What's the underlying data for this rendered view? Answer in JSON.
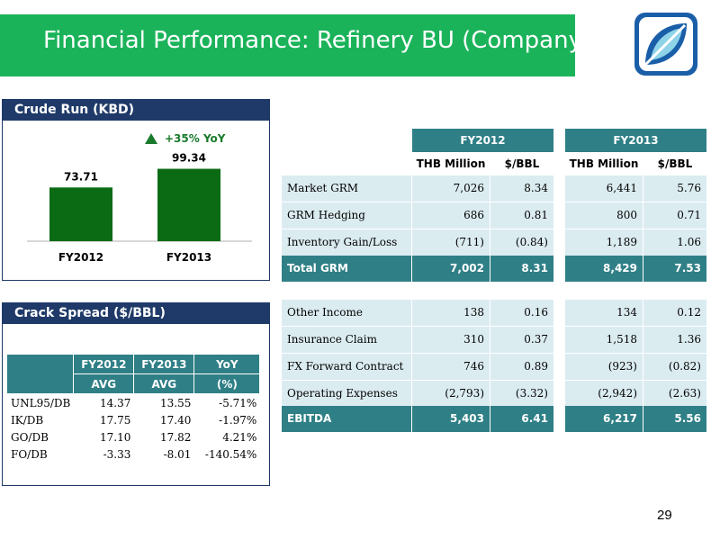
{
  "header": {
    "title": "Financial Performance: Refinery BU (Company)"
  },
  "colors": {
    "header_green": "#1bb35a",
    "panel_navy": "#1f3a68",
    "teal": "#2f7f86",
    "bar_green": "#0b6b14",
    "row_bg": "#dbecf1"
  },
  "crude_run": {
    "title": "Crude Run (KBD)",
    "yoy": "+35% YoY"
  },
  "chart_data": {
    "type": "bar",
    "title": "Crude Run (KBD)",
    "categories": [
      "FY2012",
      "FY2013"
    ],
    "values": [
      73.71,
      99.34
    ],
    "value_labels": [
      "73.71",
      "99.34"
    ],
    "annotation": "+35% YoY",
    "ylim": [
      0,
      120
    ]
  },
  "crack_spread": {
    "title": "Crack Spread ($/BBL)",
    "headers": [
      "FY2012",
      "FY2013",
      "YoY"
    ],
    "subheaders": [
      "AVG",
      "AVG",
      "(%)"
    ],
    "rows": [
      {
        "name": "UNL95/DB",
        "fy2012": "14.37",
        "fy2013": "13.55",
        "yoy": "-5.71%"
      },
      {
        "name": "IK/DB",
        "fy2012": "17.75",
        "fy2013": "17.40",
        "yoy": "-1.97%"
      },
      {
        "name": "GO/DB",
        "fy2012": "17.10",
        "fy2013": "17.82",
        "yoy": "4.21%"
      },
      {
        "name": "FO/DB",
        "fy2012": "-3.33",
        "fy2013": "-8.01",
        "yoy": "-140.54%"
      }
    ]
  },
  "performance": {
    "years": [
      "FY2012",
      "FY2013"
    ],
    "units": [
      "THB Million",
      "$/BBL",
      "THB Million",
      "$/BBL"
    ],
    "grm_rows": [
      {
        "label": "Market GRM",
        "v": [
          "7,026",
          "8.34",
          "6,441",
          "5.76"
        ]
      },
      {
        "label": "GRM Hedging",
        "v": [
          "686",
          "0.81",
          "800",
          "0.71"
        ]
      },
      {
        "label": "Inventory Gain/Loss",
        "v": [
          "(711)",
          "(0.84)",
          "1,189",
          "1.06"
        ]
      }
    ],
    "grm_total": {
      "label": "Total GRM",
      "v": [
        "7,002",
        "8.31",
        "8,429",
        "7.53"
      ]
    },
    "other_rows": [
      {
        "label": "Other Income",
        "v": [
          "138",
          "0.16",
          "134",
          "0.12"
        ]
      },
      {
        "label": "Insurance Claim",
        "v": [
          "310",
          "0.37",
          "1,518",
          "1.36"
        ]
      },
      {
        "label": "FX Forward Contract",
        "v": [
          "746",
          "0.89",
          "(923)",
          "(0.82)"
        ]
      },
      {
        "label": "Operating Expenses",
        "v": [
          "(2,793)",
          "(3.32)",
          "(2,942)",
          "(2.63)"
        ]
      }
    ],
    "ebitda": {
      "label": "EBITDA",
      "v": [
        "5,403",
        "6.41",
        "6,217",
        "5.56"
      ]
    }
  },
  "page_number": "29"
}
